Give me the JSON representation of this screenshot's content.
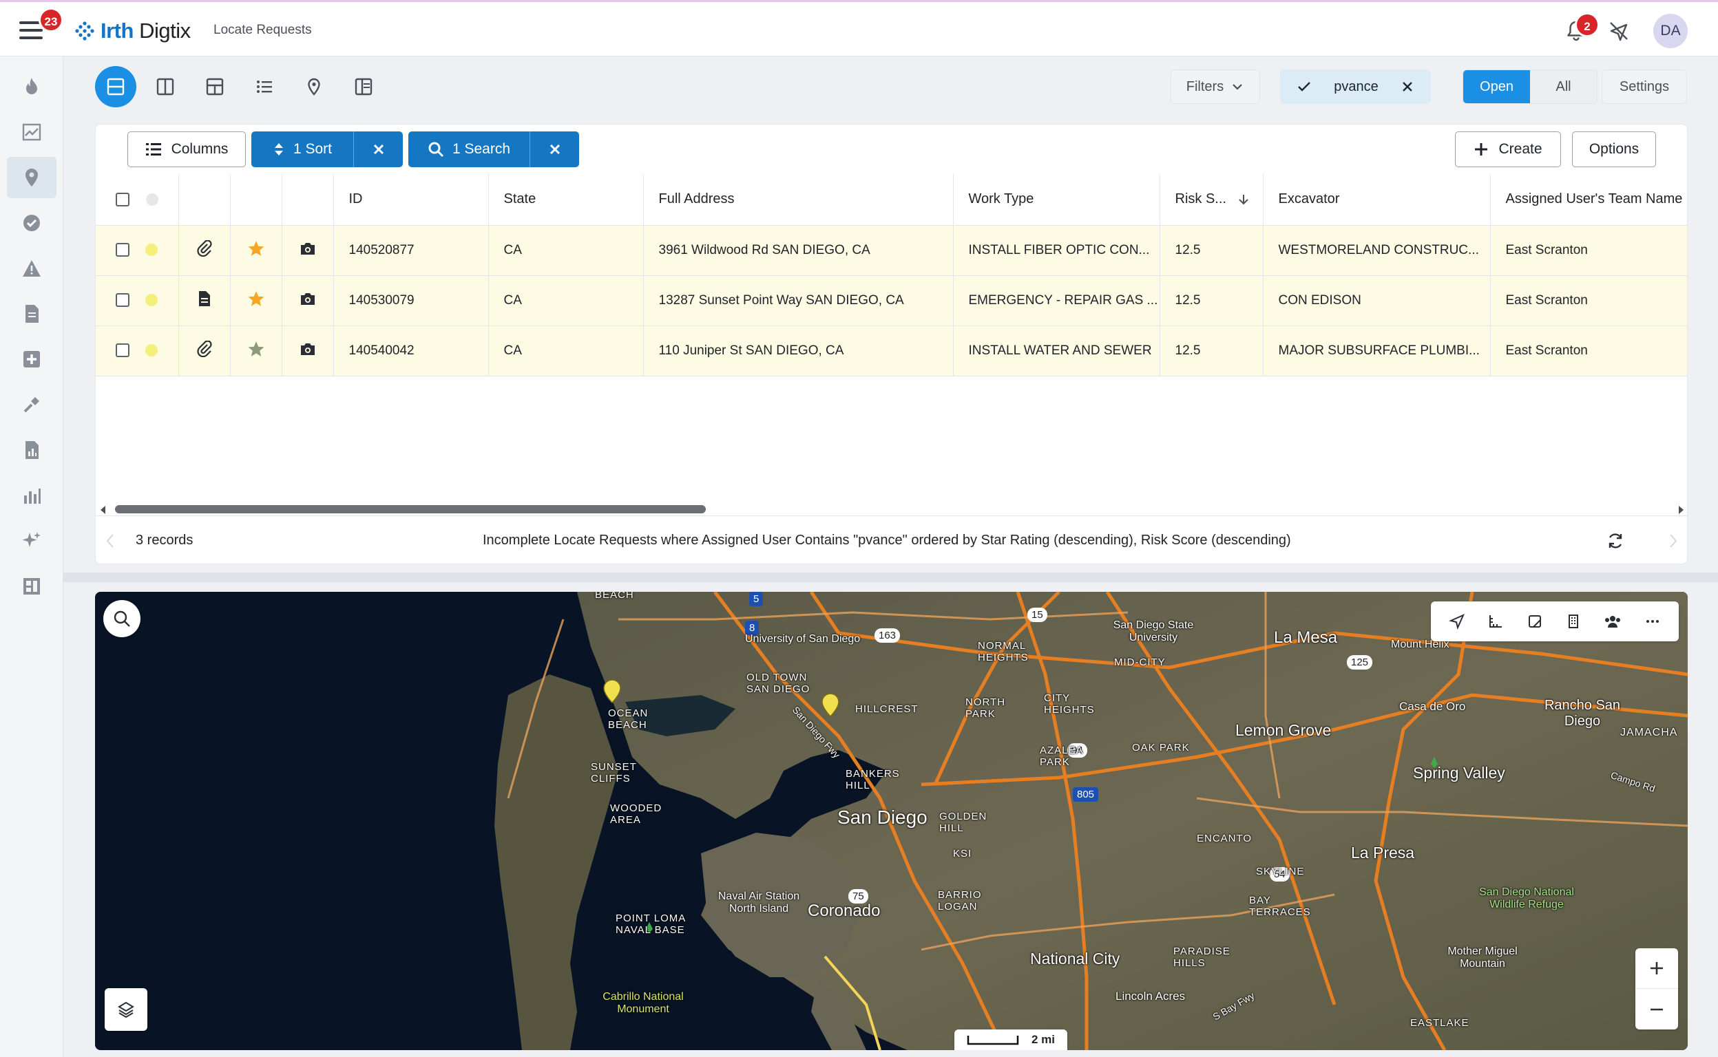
{
  "header": {
    "menu_badge": "23",
    "logo_brand": "Irth",
    "logo_product": "Digtix",
    "page_title": "Locate Requests",
    "notification_badge": "2",
    "avatar_initials": "DA"
  },
  "toolbar": {
    "filters_label": "Filters",
    "user_filter_label": "pvance",
    "open_label": "Open",
    "all_label": "All",
    "settings_label": "Settings"
  },
  "grid_toolbar": {
    "columns_label": "Columns",
    "sort_label": "1 Sort",
    "search_label": "1 Search",
    "create_label": "Create",
    "options_label": "Options"
  },
  "table": {
    "headers": [
      "ID",
      "State",
      "Full Address",
      "Work Type",
      "Risk S...",
      "Excavator",
      "Assigned User's Team Name"
    ],
    "rows": [
      {
        "id": "140520877",
        "state": "CA",
        "address": "3961 Wildwood Rd SAN DIEGO, CA",
        "work_type": "INSTALL FIBER OPTIC CON...",
        "risk": "12.5",
        "excavator": "WESTMORELAND CONSTRUC...",
        "team": "East Scranton",
        "attachment": "paperclip-icon",
        "star_color": "#f5a623"
      },
      {
        "id": "140530079",
        "state": "CA",
        "address": "13287 Sunset Point Way SAN DIEGO, CA",
        "work_type": "EMERGENCY - REPAIR GAS ...",
        "risk": "12.5",
        "excavator": "CON EDISON",
        "team": "East Scranton",
        "attachment": "document-icon",
        "star_color": "#f5a623"
      },
      {
        "id": "140540042",
        "state": "CA",
        "address": "110 Juniper St SAN DIEGO, CA",
        "work_type": "INSTALL WATER AND SEWER",
        "risk": "12.5",
        "excavator": "MAJOR SUBSURFACE PLUMBI...",
        "team": "East Scranton",
        "attachment": "paperclip-icon",
        "star_color": "#8e9a7a"
      }
    ]
  },
  "footer": {
    "record_count": "3 records",
    "query_description": "Incomplete Locate Requests where Assigned User Contains \"pvance\" ordered by Star Rating (descending), Risk Score (descending)"
  },
  "map": {
    "scale_label": "2 mi",
    "places": {
      "san_diego": "San Diego",
      "coronado": "Coronado",
      "la_mesa": "La Mesa",
      "lemon_grove": "Lemon Grove",
      "spring_valley": "Spring Valley",
      "la_presa": "La Presa",
      "national_city": "National City",
      "rancho_san_diego": "Rancho San Diego",
      "jamacha": "JAMACHA",
      "casa_de_oro": "Casa de Oro",
      "mount_helix": "Mount Helix",
      "sdsu": "San Diego State University",
      "ucsd": "University of San Diego",
      "old_town": "OLD TOWN SAN DIEGO",
      "ocean_beach": "OCEAN BEACH",
      "sunset_cliffs": "SUNSET CLIFFS",
      "wooded_area": "WOODED AREA",
      "point_loma": "POINT LOMA NAVAL BASE",
      "naval_air": "Naval Air Station North Island",
      "cabrillo": "Cabrillo National Monument",
      "normal_heights": "NORMAL HEIGHTS",
      "north_park": "NORTH PARK",
      "city_heights": "CITY HEIGHTS",
      "oak_park": "OAK PARK",
      "azalea_park": "AZALEA PARK",
      "golden_hill": "GOLDEN HILL",
      "hillcrest": "HILLCREST",
      "bankers_hill": "BANKERS HILL",
      "barrio_logan": "BARRIO LOGAN",
      "encanto": "ENCANTO",
      "skyline": "SKYLINE",
      "bay_terraces": "BAY TERRACES",
      "paradise_hills": "PARADISE HILLS",
      "lincoln_acres": "Lincoln Acres",
      "eastlake": "EASTLAKE",
      "mid_city": "MID-CITY",
      "refuge": "San Diego National Wildlife Refuge",
      "mother_miguel": "Mother Miguel Mountain",
      "beach": "BEACH",
      "ksi": "KSI",
      "campo_rd": "Campo Rd",
      "san_diego_fwy": "San Diego Fwy",
      "s_bay_fwy": "S Bay Fwy"
    },
    "route_shields": {
      "r8": "8",
      "r15": "15",
      "r163": "163",
      "r125": "125",
      "r94": "94",
      "r805": "805",
      "r54": "54",
      "r75": "75",
      "r5": "5"
    }
  }
}
